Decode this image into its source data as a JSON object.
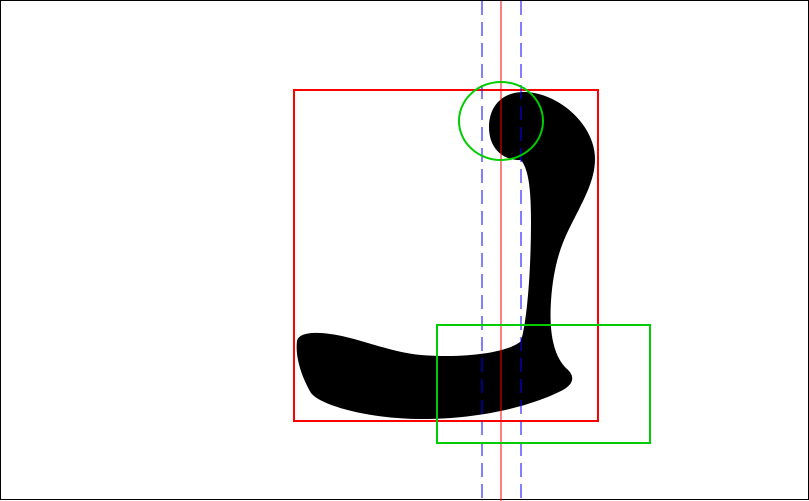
{
  "glyph": {
    "fill": "#000000"
  },
  "guides": {
    "center_line_color": "#ff0000",
    "dashed_line_color": "#0000ff",
    "bounding_box_color": "#ff0000",
    "highlight_color": "#00cc00"
  }
}
